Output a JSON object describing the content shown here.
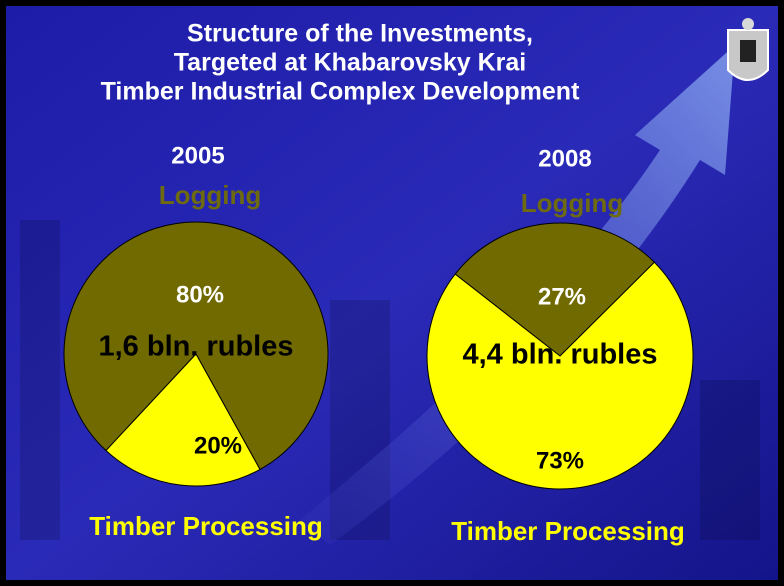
{
  "title": [
    "Structure of the Investments,",
    "Targeted at Khabarovsky Krai",
    "Timber Industrial Complex Development"
  ],
  "chart_data": [
    {
      "type": "pie",
      "title": "2005",
      "center_label": "1,6 bln. rubles",
      "categories": [
        "Logging",
        "Timber Processing"
      ],
      "values": [
        80,
        20
      ],
      "value_labels": [
        "80%",
        "20%"
      ],
      "colors": [
        "#706a00",
        "#ffff00"
      ]
    },
    {
      "type": "pie",
      "title": "2008",
      "center_label": "4,4 bln. rubles",
      "categories": [
        "Logging",
        "Timber Processing"
      ],
      "values": [
        27,
        73
      ],
      "value_labels": [
        "27%",
        "73%"
      ],
      "colors": [
        "#706a00",
        "#ffff00"
      ]
    }
  ]
}
